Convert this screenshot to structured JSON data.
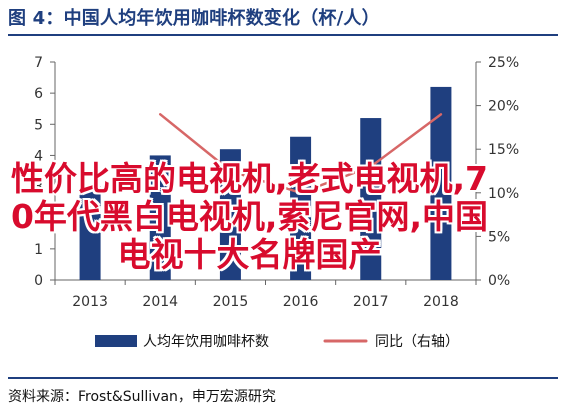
{
  "title": "图 4：中国人均年饮用咖啡杯数变化（杯/人）",
  "source": "资料来源：Frost&Sullivan，申万宏源研究",
  "overlay_text": "性价比高的电视机,老式电视机,70年代黑白电视机,索尼官网,中国电视十大名牌国产",
  "colors": {
    "title": "#1f3f7f",
    "rule": "#1f3f7f",
    "bar": "#1f3f7f",
    "line": "#d76767",
    "overlay": "#d80b2d",
    "axis": "#666666"
  },
  "chart_data": {
    "type": "bar",
    "categories": [
      "2013",
      "2014",
      "2015",
      "2016",
      "2017",
      "2018"
    ],
    "series": [
      {
        "name": "人均年饮用咖啡杯数",
        "type": "bar",
        "axis": "left",
        "values": [
          3.0,
          4.0,
          4.2,
          4.6,
          5.2,
          6.2
        ]
      },
      {
        "name": "同比（右轴）",
        "type": "line",
        "axis": "right",
        "values": [
          null,
          19.0,
          12.5,
          10.0,
          13.0,
          19.0
        ]
      }
    ],
    "y_left": {
      "min": 0,
      "max": 7,
      "ticks": [
        "0",
        "1",
        "2",
        "3",
        "4",
        "5",
        "6",
        "7"
      ]
    },
    "y_right": {
      "min": 0,
      "max": 25,
      "ticks": [
        "0%",
        "5%",
        "10%",
        "15%",
        "20%",
        "25%"
      ]
    },
    "grid": false,
    "legend_position": "bottom"
  }
}
